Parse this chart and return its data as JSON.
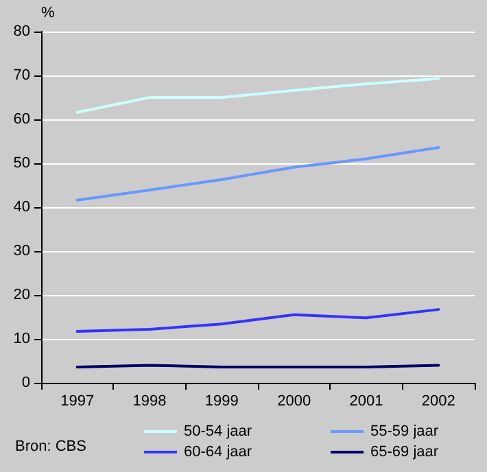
{
  "chart_data": {
    "type": "line",
    "ylabel": "%",
    "categories": [
      "1997",
      "1998",
      "1999",
      "2000",
      "2001",
      "2002"
    ],
    "series": [
      {
        "name": "50-54 jaar",
        "color": "#ccffff",
        "values": [
          61.6,
          65,
          65,
          66.6,
          68.1,
          69.3
        ]
      },
      {
        "name": "55-59 jaar",
        "color": "#6699ff",
        "values": [
          41.6,
          43.9,
          46.3,
          49.1,
          51,
          53.6
        ]
      },
      {
        "name": "60-64 jaar",
        "color": "#3333ff",
        "values": [
          11.7,
          12.2,
          13.4,
          15.5,
          14.8,
          16.7
        ]
      },
      {
        "name": "65-69 jaar",
        "color": "#000066",
        "values": [
          3.6,
          4,
          3.6,
          3.6,
          3.6,
          4
        ]
      }
    ],
    "ylim": [
      0,
      80
    ],
    "yticks": [
      0,
      10,
      20,
      30,
      40,
      50,
      60,
      70,
      80
    ],
    "grid": "y",
    "legend": "bottom",
    "marker": "none",
    "line_style": "solid",
    "annotations": [
      "Bron: CBS"
    ]
  }
}
